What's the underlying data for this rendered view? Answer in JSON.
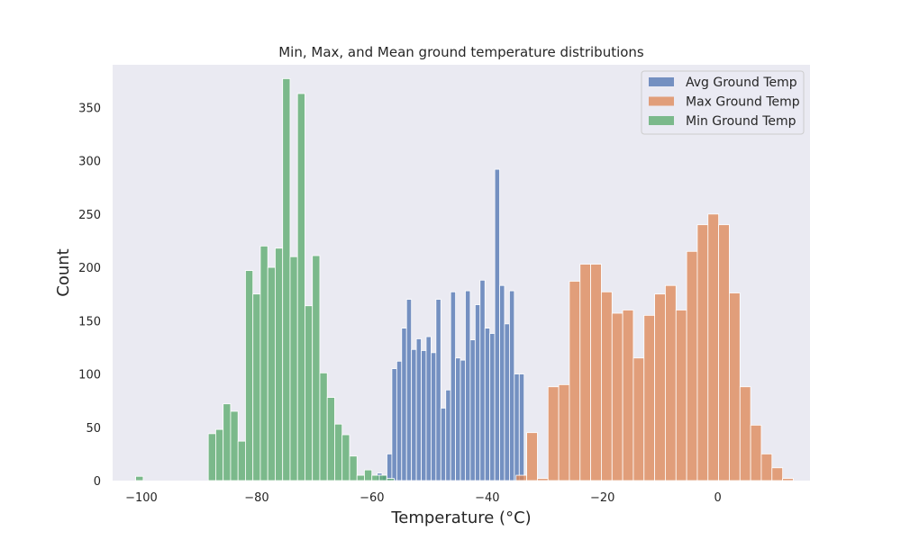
{
  "chart_data": {
    "type": "histogram",
    "title": "Min, Max, and Mean ground temperature distributions",
    "xlabel": "Temperature (°C)",
    "ylabel": "Count",
    "xlim": [
      -105,
      16
    ],
    "ylim": [
      0,
      390
    ],
    "xticks": [
      -100,
      -80,
      -60,
      -40,
      -20,
      0
    ],
    "yticks": [
      0,
      50,
      100,
      150,
      200,
      250,
      300,
      350
    ],
    "grid": false,
    "legend_position": "top-right",
    "series": [
      {
        "name": "Avg Ground Temp",
        "color": "#4c72b0",
        "bin_start": -59.1,
        "bin_width": 0.85,
        "counts": [
          7,
          5,
          25,
          105,
          112,
          143,
          170,
          123,
          133,
          122,
          135,
          120,
          170,
          68,
          85,
          177,
          115,
          113,
          178,
          132,
          165,
          188,
          143,
          138,
          292,
          183,
          147,
          178,
          100,
          100
        ]
      },
      {
        "name": "Max Ground Temp",
        "color": "#dd8452",
        "bin_start": -35.0,
        "bin_width": 1.85,
        "counts": [
          5,
          45,
          2,
          88,
          90,
          187,
          203,
          203,
          177,
          157,
          160,
          115,
          155,
          175,
          183,
          160,
          215,
          240,
          250,
          240,
          176,
          88,
          52,
          25,
          12,
          2
        ]
      },
      {
        "name": "Min Ground Temp",
        "color": "#55a868",
        "bin_start": -88.4,
        "bin_width": 1.29,
        "counts": [
          44,
          48,
          72,
          65,
          37,
          197,
          175,
          220,
          200,
          218,
          377,
          210,
          363,
          164,
          211,
          101,
          78,
          53,
          43,
          23,
          5,
          10,
          5,
          5,
          2
        ],
        "extra_bins": [
          {
            "x0": -101.0,
            "x1": -99.7,
            "count": 4
          }
        ]
      }
    ]
  }
}
